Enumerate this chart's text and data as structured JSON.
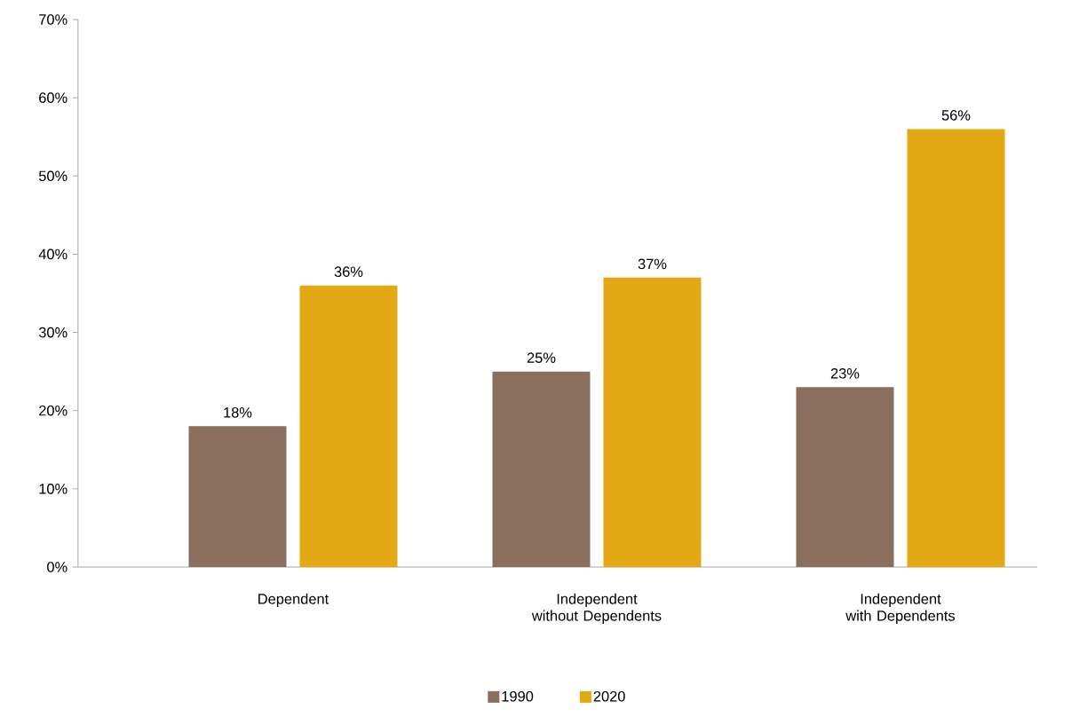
{
  "chart_data": {
    "type": "bar",
    "categories": [
      "Dependent",
      "Independent without Dependents",
      "Independent with Dependents"
    ],
    "series": [
      {
        "name": "1990",
        "color": "#8a6e5e",
        "values": [
          18,
          25,
          23
        ],
        "value_labels": [
          "18%",
          "25%",
          "23%"
        ]
      },
      {
        "name": "2020",
        "color": "#e3a813",
        "values": [
          36,
          37,
          56
        ],
        "value_labels": [
          "36%",
          "37%",
          "56%"
        ]
      }
    ],
    "ylim": [
      0,
      70
    ],
    "yticks": [
      {
        "value": 0,
        "label": "0%"
      },
      {
        "value": 10,
        "label": "10%"
      },
      {
        "value": 20,
        "label": "20%"
      },
      {
        "value": 30,
        "label": "30%"
      },
      {
        "value": 40,
        "label": "40%"
      },
      {
        "value": 50,
        "label": "50%"
      },
      {
        "value": 60,
        "label": "60%"
      },
      {
        "value": 70,
        "label": "70%"
      }
    ],
    "grid": false,
    "legend": "bottom"
  }
}
